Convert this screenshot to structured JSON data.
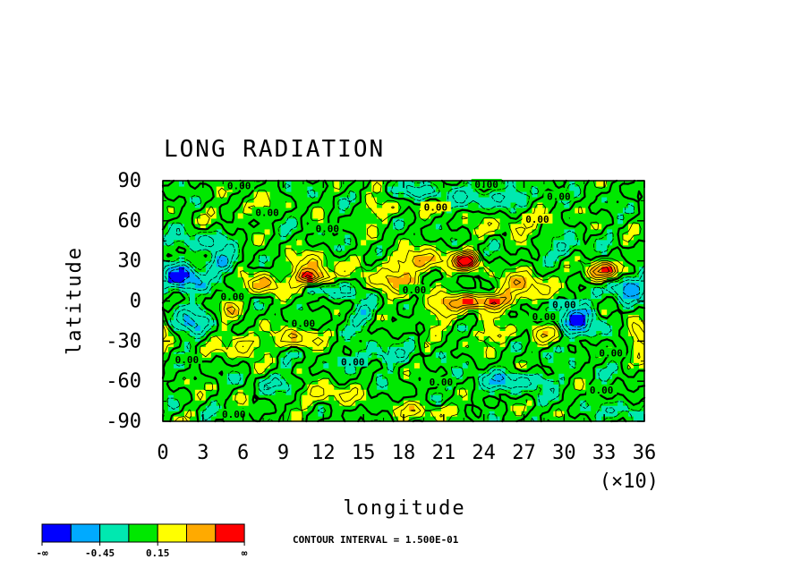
{
  "chart_data": {
    "type": "heatmap",
    "title": "LONG RADIATION",
    "xlabel": "longitude",
    "ylabel": "latitude",
    "x_ticks": [
      "0",
      "3",
      "6",
      "9",
      "12",
      "15",
      "18",
      "21",
      "24",
      "27",
      "30",
      "33",
      "36"
    ],
    "x_multiplier": "(×10)",
    "y_ticks": [
      "90",
      "60",
      "30",
      "0",
      "-30",
      "-60",
      "-90"
    ],
    "xlim": [
      0,
      360
    ],
    "ylim": [
      -90,
      90
    ],
    "contour_interval_text": "CONTOUR INTERVAL = 1.500E-01",
    "contour_label": "0.00",
    "contour_label_positions": [
      [
        57,
        85
      ],
      [
        78,
        65
      ],
      [
        242,
        86
      ],
      [
        204,
        69
      ],
      [
        296,
        77
      ],
      [
        123,
        53
      ],
      [
        52,
        2
      ],
      [
        300,
        -4
      ],
      [
        285,
        -13
      ],
      [
        142,
        -47
      ],
      [
        208,
        -62
      ],
      [
        328,
        -68
      ],
      [
        335,
        -40
      ],
      [
        53,
        -86
      ],
      [
        188,
        7
      ],
      [
        105,
        -18
      ],
      [
        280,
        60
      ],
      [
        18,
        -45
      ]
    ],
    "colorbar": {
      "colors": [
        "#0000ff",
        "#00aaff",
        "#00e8b0",
        "#00e800",
        "#ffff00",
        "#ffaa00",
        "#ff0000"
      ],
      "labels": [
        "-∞",
        "-0.45",
        "0.15",
        "∞"
      ]
    },
    "features": [
      {
        "lon": 15,
        "lat": 18,
        "value": -0.75,
        "sx": 10,
        "sy": 8
      },
      {
        "lon": 45,
        "lat": 28,
        "value": -0.45,
        "sx": 8,
        "sy": 6
      },
      {
        "lon": 20,
        "lat": -15,
        "value": -0.4,
        "sx": 10,
        "sy": 8
      },
      {
        "lon": 60,
        "lat": -32,
        "value": 0.45,
        "sx": 10,
        "sy": 6
      },
      {
        "lon": 75,
        "lat": 12,
        "value": 0.55,
        "sx": 9,
        "sy": 6
      },
      {
        "lon": 112,
        "lat": 18,
        "value": 1.0,
        "sx": 9,
        "sy": 4
      },
      {
        "lon": 110,
        "lat": 28,
        "value": 0.35,
        "sx": 14,
        "sy": 5
      },
      {
        "lon": 100,
        "lat": -28,
        "value": 0.45,
        "sx": 10,
        "sy": 5
      },
      {
        "lon": 130,
        "lat": 8,
        "value": -0.35,
        "sx": 12,
        "sy": 5
      },
      {
        "lon": 170,
        "lat": 15,
        "value": 0.45,
        "sx": 14,
        "sy": 7
      },
      {
        "lon": 195,
        "lat": 30,
        "value": 0.5,
        "sx": 18,
        "sy": 6
      },
      {
        "lon": 228,
        "lat": 30,
        "value": 1.0,
        "sx": 6,
        "sy": 4
      },
      {
        "lon": 210,
        "lat": -5,
        "value": 0.35,
        "sx": 14,
        "sy": 8
      },
      {
        "lon": 240,
        "lat": 0,
        "value": 0.75,
        "sx": 16,
        "sy": 4
      },
      {
        "lon": 270,
        "lat": 12,
        "value": 0.45,
        "sx": 14,
        "sy": 8
      },
      {
        "lon": 310,
        "lat": -15,
        "value": -0.55,
        "sx": 12,
        "sy": 10
      },
      {
        "lon": 330,
        "lat": 22,
        "value": 0.85,
        "sx": 10,
        "sy": 5
      },
      {
        "lon": 345,
        "lat": 12,
        "value": -0.6,
        "sx": 8,
        "sy": 8
      },
      {
        "lon": 355,
        "lat": -25,
        "value": 0.5,
        "sx": 6,
        "sy": 8
      },
      {
        "lon": 65,
        "lat": 68,
        "value": 0.3,
        "sx": 10,
        "sy": 5
      },
      {
        "lon": 165,
        "lat": 68,
        "value": 0.3,
        "sx": 12,
        "sy": 5
      },
      {
        "lon": 265,
        "lat": 58,
        "value": 0.3,
        "sx": 16,
        "sy": 5
      },
      {
        "lon": 250,
        "lat": 78,
        "value": -0.35,
        "sx": 22,
        "sy": 5
      },
      {
        "lon": 190,
        "lat": 82,
        "value": -0.35,
        "sx": 14,
        "sy": 4
      },
      {
        "lon": 120,
        "lat": -70,
        "value": 0.35,
        "sx": 16,
        "sy": 6
      },
      {
        "lon": 260,
        "lat": -60,
        "value": -0.35,
        "sx": 24,
        "sy": 6
      },
      {
        "lon": 30,
        "lat": 45,
        "value": -0.3,
        "sx": 14,
        "sy": 6
      },
      {
        "lon": 300,
        "lat": 40,
        "value": -0.3,
        "sx": 12,
        "sy": 6
      },
      {
        "lon": 160,
        "lat": -40,
        "value": -0.3,
        "sx": 14,
        "sy": 6
      },
      {
        "lon": 345,
        "lat": -80,
        "value": -0.3,
        "sx": 12,
        "sy": 5
      },
      {
        "lon": 90,
        "lat": -62,
        "value": -0.25,
        "sx": 14,
        "sy": 5
      },
      {
        "lon": 200,
        "lat": -82,
        "value": 0.3,
        "sx": 20,
        "sy": 4
      },
      {
        "lon": 50,
        "lat": -5,
        "value": 0.35,
        "sx": 6,
        "sy": 5
      },
      {
        "lon": 150,
        "lat": -10,
        "value": -0.35,
        "sx": 8,
        "sy": 6
      },
      {
        "lon": 290,
        "lat": -25,
        "value": 0.35,
        "sx": 10,
        "sy": 5
      },
      {
        "lon": 250,
        "lat": -25,
        "value": 0.35,
        "sx": 10,
        "sy": 5
      }
    ]
  }
}
